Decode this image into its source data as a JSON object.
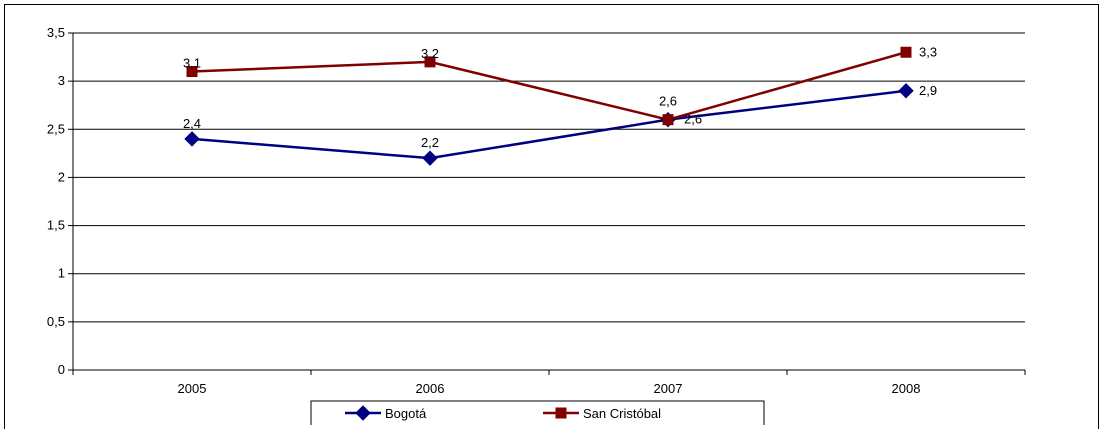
{
  "chart_data": {
    "type": "line",
    "categories": [
      "2005",
      "2006",
      "2007",
      "2008"
    ],
    "series": [
      {
        "name": "Bogotá",
        "values": [
          2.4,
          2.2,
          2.6,
          2.9
        ],
        "labels": [
          "2,4",
          "2,2",
          "2,6",
          "2,9"
        ],
        "color": "#000080",
        "marker": "diamond"
      },
      {
        "name": "San Cristóbal",
        "values": [
          3.1,
          3.2,
          2.6,
          3.3
        ],
        "labels": [
          "3,1",
          "3,2",
          "2,6",
          "3,3"
        ],
        "color": "#800000",
        "marker": "square"
      }
    ],
    "ylim": [
      0,
      3.5
    ],
    "yticks": [
      0,
      0.5,
      1,
      1.5,
      2,
      2.5,
      3,
      3.5
    ],
    "ytick_labels": [
      "0",
      "0,5",
      "1",
      "1,5",
      "2",
      "2,5",
      "3",
      "3,5"
    ],
    "grid": true,
    "legend_position": "bottom-center",
    "title": "",
    "xlabel": "",
    "ylabel": ""
  }
}
